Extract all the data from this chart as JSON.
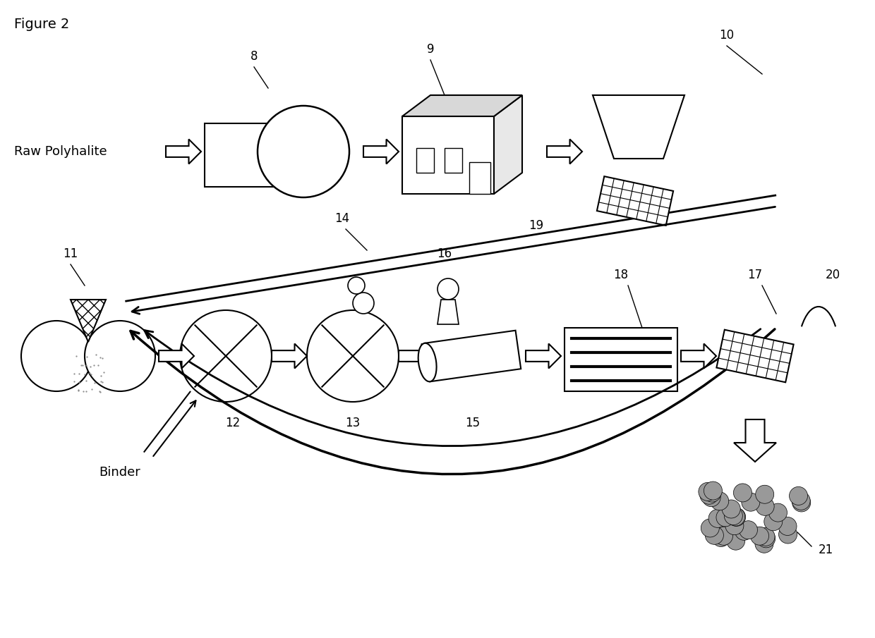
{
  "title": "Figure 2",
  "background_color": "#ffffff",
  "line_color": "#000000",
  "text_color": "#000000",
  "figsize": [
    12.4,
    9.05
  ],
  "dpi": 100
}
